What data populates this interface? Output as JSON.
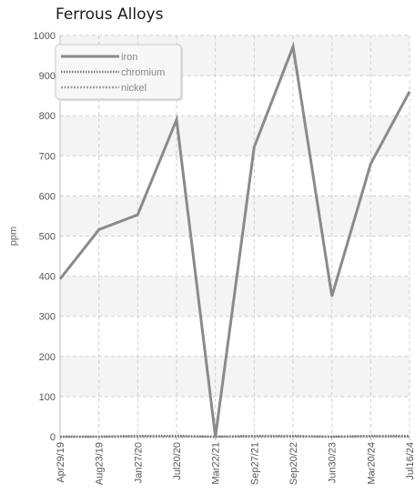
{
  "chart_data": {
    "type": "line",
    "title": "Ferrous Alloys",
    "xlabel": "",
    "ylabel": "ppm",
    "ylim": [
      0,
      1000
    ],
    "yticks": [
      0,
      100,
      200,
      300,
      400,
      500,
      600,
      700,
      800,
      900,
      1000
    ],
    "categories": [
      "Apr29/19",
      "Aug23/19",
      "Jan27/20",
      "Jul20/20",
      "Mar22/21",
      "Sep27/21",
      "Sep20/22",
      "Jun30/23",
      "Mar20/24",
      "Jul16/24"
    ],
    "grid": true,
    "legend_position": "top-left",
    "series": [
      {
        "name": "iron",
        "color": "#8a8a8a",
        "style": "solid",
        "values": [
          393,
          516,
          553,
          790,
          0,
          722,
          972,
          350,
          680,
          860
        ]
      },
      {
        "name": "chromium",
        "color": "#7a7a7a",
        "style": "dotted",
        "values": [
          0,
          0,
          2,
          2,
          0,
          2,
          2,
          0,
          2,
          2
        ]
      },
      {
        "name": "nickel",
        "color": "#a0a0a0",
        "style": "dashed",
        "values": [
          0,
          0,
          0,
          0,
          0,
          0,
          0,
          0,
          0,
          0
        ]
      }
    ]
  }
}
